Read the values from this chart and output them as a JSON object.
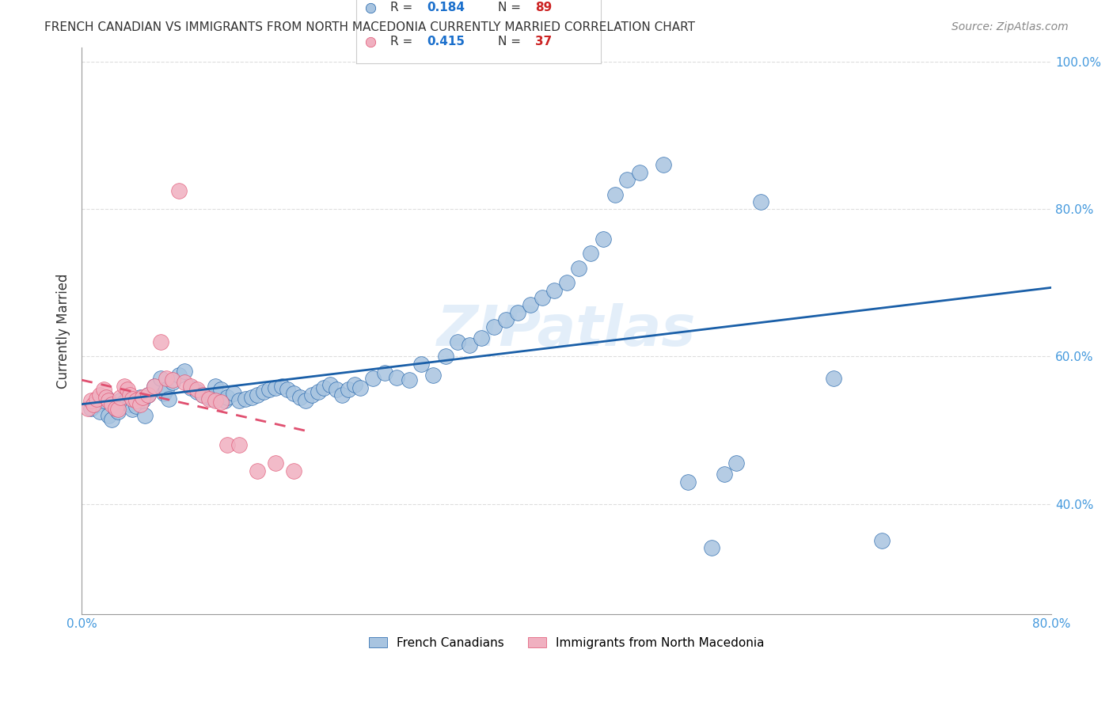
{
  "title": "FRENCH CANADIAN VS IMMIGRANTS FROM NORTH MACEDONIA CURRENTLY MARRIED CORRELATION CHART",
  "source": "Source: ZipAtlas.com",
  "xlabel_label": "",
  "ylabel_label": "Currently Married",
  "x_min": 0.0,
  "x_max": 0.8,
  "y_min": 0.25,
  "y_max": 1.02,
  "x_ticks": [
    0.0,
    0.1,
    0.2,
    0.3,
    0.4,
    0.5,
    0.6,
    0.7,
    0.8
  ],
  "x_tick_labels": [
    "0.0%",
    "",
    "",
    "",
    "",
    "",
    "",
    "",
    "80.0%"
  ],
  "y_ticks": [
    0.4,
    0.6,
    0.8,
    1.0
  ],
  "y_tick_labels": [
    "40.0%",
    "60.0%",
    "80.0%",
    "100.0%"
  ],
  "series1_label": "French Canadians",
  "series1_R": "0.184",
  "series1_N": "89",
  "series1_color": "#a8c4e0",
  "series1_line_color": "#1a5fa8",
  "series2_label": "Immigrants from North Macedonia",
  "series2_R": "0.415",
  "series2_N": "37",
  "series2_color": "#f0b0c0",
  "series2_line_color": "#e05070",
  "legend_R_color": "#1a6fcc",
  "legend_N_color": "#cc2222",
  "watermark": "ZIPatlas",
  "background_color": "#ffffff",
  "grid_color": "#dddddd",
  "series1_x": [
    0.008,
    0.012,
    0.015,
    0.018,
    0.02,
    0.022,
    0.025,
    0.028,
    0.03,
    0.032,
    0.035,
    0.038,
    0.04,
    0.042,
    0.045,
    0.048,
    0.05,
    0.052,
    0.055,
    0.06,
    0.065,
    0.068,
    0.07,
    0.072,
    0.075,
    0.08,
    0.085,
    0.09,
    0.095,
    0.1,
    0.105,
    0.108,
    0.11,
    0.115,
    0.118,
    0.12,
    0.125,
    0.13,
    0.135,
    0.14,
    0.145,
    0.15,
    0.155,
    0.16,
    0.165,
    0.17,
    0.175,
    0.18,
    0.185,
    0.19,
    0.195,
    0.2,
    0.205,
    0.21,
    0.215,
    0.22,
    0.225,
    0.23,
    0.24,
    0.25,
    0.26,
    0.27,
    0.28,
    0.29,
    0.3,
    0.31,
    0.32,
    0.33,
    0.34,
    0.35,
    0.36,
    0.37,
    0.38,
    0.39,
    0.4,
    0.41,
    0.42,
    0.43,
    0.44,
    0.45,
    0.46,
    0.48,
    0.5,
    0.52,
    0.53,
    0.54,
    0.56,
    0.62,
    0.66
  ],
  "series1_y": [
    0.53,
    0.535,
    0.525,
    0.54,
    0.545,
    0.52,
    0.515,
    0.53,
    0.525,
    0.54,
    0.538,
    0.542,
    0.535,
    0.528,
    0.533,
    0.545,
    0.54,
    0.52,
    0.548,
    0.56,
    0.57,
    0.55,
    0.555,
    0.542,
    0.565,
    0.575,
    0.58,
    0.558,
    0.552,
    0.548,
    0.545,
    0.542,
    0.56,
    0.555,
    0.54,
    0.545,
    0.55,
    0.54,
    0.542,
    0.545,
    0.548,
    0.552,
    0.555,
    0.558,
    0.56,
    0.555,
    0.55,
    0.545,
    0.54,
    0.548,
    0.552,
    0.558,
    0.562,
    0.555,
    0.548,
    0.555,
    0.562,
    0.558,
    0.57,
    0.578,
    0.572,
    0.568,
    0.59,
    0.575,
    0.6,
    0.62,
    0.615,
    0.625,
    0.64,
    0.65,
    0.66,
    0.67,
    0.68,
    0.69,
    0.7,
    0.72,
    0.74,
    0.76,
    0.82,
    0.84,
    0.85,
    0.86,
    0.43,
    0.34,
    0.44,
    0.455,
    0.81,
    0.57,
    0.35
  ],
  "series2_x": [
    0.005,
    0.008,
    0.01,
    0.012,
    0.015,
    0.018,
    0.02,
    0.022,
    0.025,
    0.028,
    0.03,
    0.032,
    0.035,
    0.038,
    0.04,
    0.042,
    0.045,
    0.048,
    0.05,
    0.055,
    0.06,
    0.065,
    0.07,
    0.075,
    0.08,
    0.085,
    0.09,
    0.095,
    0.1,
    0.105,
    0.11,
    0.115,
    0.12,
    0.13,
    0.145,
    0.16,
    0.175
  ],
  "series2_y": [
    0.53,
    0.54,
    0.535,
    0.542,
    0.548,
    0.555,
    0.545,
    0.54,
    0.535,
    0.53,
    0.528,
    0.545,
    0.56,
    0.555,
    0.548,
    0.542,
    0.54,
    0.535,
    0.545,
    0.548,
    0.56,
    0.62,
    0.57,
    0.568,
    0.825,
    0.565,
    0.56,
    0.555,
    0.548,
    0.542,
    0.54,
    0.538,
    0.48,
    0.48,
    0.445,
    0.455,
    0.445
  ]
}
